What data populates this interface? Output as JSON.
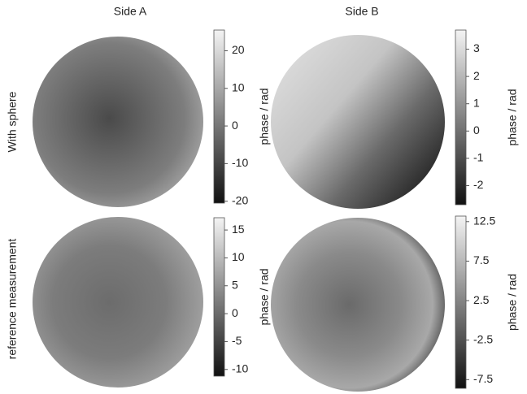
{
  "figure": {
    "columns": [
      "Side A",
      "Side B"
    ],
    "rows": [
      "With sphere",
      "reference measurement"
    ]
  },
  "chart_data": [
    {
      "type": "heatmap",
      "colorbar_label": "phase / rad",
      "clim": [
        -20.5,
        25.5
      ],
      "cticks": [
        -20,
        -10,
        0,
        10,
        20
      ]
    },
    {
      "type": "heatmap",
      "colorbar_label": "phase / rad",
      "clim": [
        -2.7,
        3.7
      ],
      "cticks": [
        -2,
        -1,
        0,
        1,
        2,
        3
      ]
    },
    {
      "type": "heatmap",
      "colorbar_label": "phase / rad",
      "clim": [
        -11.2,
        17.2
      ],
      "cticks": [
        -10,
        -5,
        0,
        5,
        10,
        15
      ]
    },
    {
      "type": "heatmap",
      "colorbar_label": "phase / rad",
      "clim": [
        -8.6,
        13.2
      ],
      "cticks": [
        -7.5,
        -2.5,
        2.5,
        7.5,
        12.5
      ]
    }
  ]
}
